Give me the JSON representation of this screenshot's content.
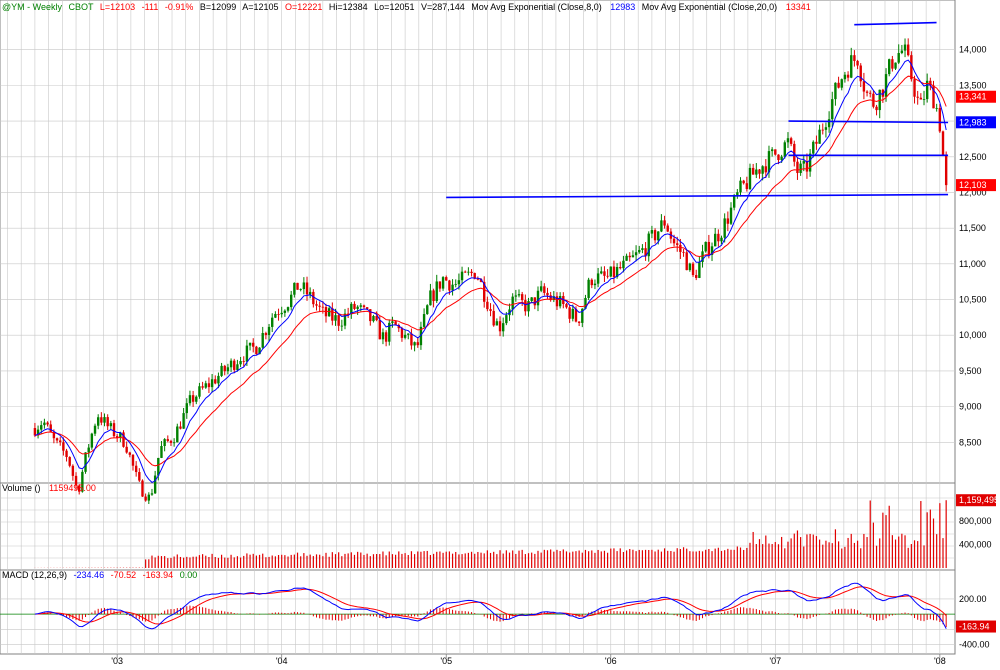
{
  "header": {
    "symbol": "@YM - Weekly",
    "exchange": "CBOT",
    "last": "L=12103",
    "change": "-111",
    "change_pct": "-0.91%",
    "bid": "B=12099",
    "ask": "A=12105",
    "open": "O=12221",
    "high": "Hi=12384",
    "low": "Lo=12051",
    "volume": "V=287,144",
    "ma8_label": "Mov Avg Exponential (Close,8,0)",
    "ma8_value": "12983",
    "ma20_label": "Mov Avg Exponential (Close,20,0)",
    "ma20_value": "13341"
  },
  "volume_header": {
    "label": "Volume ()",
    "value": "1159495.00"
  },
  "macd_header": {
    "label": "MACD (12,26,9)",
    "macd": "-234.46",
    "signal": "-70.52",
    "hist": "-163.94",
    "zero": "0.00"
  },
  "colors": {
    "up": "#008000",
    "down": "#e00000",
    "ma8": "#0000ff",
    "ma20": "#ff0000",
    "grid": "#c8c8c8",
    "trendline": "#0000ff",
    "volume": "#e00000",
    "macd": "#0000ff",
    "signal": "#ff0000"
  },
  "chart_data": [
    {
      "type": "candlestick",
      "title": "@YM - Weekly",
      "timeframe": "weekly",
      "ylim": [
        8000,
        14500
      ],
      "y_ticks": [
        8500,
        9000,
        9500,
        10000,
        10500,
        11000,
        11500,
        12000,
        12500,
        13000,
        13500,
        14000
      ],
      "y_tick_labels": [
        "8,500",
        "9,000",
        "9,500",
        "10,000",
        "10,500",
        "11,000",
        "11,500",
        "12,000",
        "12,500",
        "13,000",
        "13,500",
        "14,000"
      ],
      "x_tick_labels": [
        "'03",
        "'04",
        "'05",
        "'06",
        "'07",
        "'08"
      ],
      "close_anchors": [
        {
          "t": 2002.5,
          "v": 8700
        },
        {
          "t": 2002.55,
          "v": 8800
        },
        {
          "t": 2002.62,
          "v": 8500
        },
        {
          "t": 2002.7,
          "v": 8300
        },
        {
          "t": 2002.76,
          "v": 7800
        },
        {
          "t": 2002.82,
          "v": 8400
        },
        {
          "t": 2002.88,
          "v": 8900
        },
        {
          "t": 2002.95,
          "v": 8700
        },
        {
          "t": 2003.05,
          "v": 8500
        },
        {
          "t": 2003.13,
          "v": 7900
        },
        {
          "t": 2003.2,
          "v": 7700
        },
        {
          "t": 2003.26,
          "v": 8400
        },
        {
          "t": 2003.35,
          "v": 8600
        },
        {
          "t": 2003.45,
          "v": 9100
        },
        {
          "t": 2003.55,
          "v": 9300
        },
        {
          "t": 2003.65,
          "v": 9500
        },
        {
          "t": 2003.75,
          "v": 9700
        },
        {
          "t": 2003.85,
          "v": 9850
        },
        {
          "t": 2003.95,
          "v": 10300
        },
        {
          "t": 2004.05,
          "v": 10500
        },
        {
          "t": 2004.1,
          "v": 10700
        },
        {
          "t": 2004.15,
          "v": 10600
        },
        {
          "t": 2004.25,
          "v": 10300
        },
        {
          "t": 2004.35,
          "v": 10200
        },
        {
          "t": 2004.45,
          "v": 10400
        },
        {
          "t": 2004.55,
          "v": 10200
        },
        {
          "t": 2004.62,
          "v": 9950
        },
        {
          "t": 2004.68,
          "v": 10150
        },
        {
          "t": 2004.78,
          "v": 9900
        },
        {
          "t": 2004.82,
          "v": 9800
        },
        {
          "t": 2004.9,
          "v": 10500
        },
        {
          "t": 2004.98,
          "v": 10800
        },
        {
          "t": 2005.05,
          "v": 10700
        },
        {
          "t": 2005.18,
          "v": 10900
        },
        {
          "t": 2005.28,
          "v": 10300
        },
        {
          "t": 2005.32,
          "v": 10100
        },
        {
          "t": 2005.4,
          "v": 10500
        },
        {
          "t": 2005.5,
          "v": 10400
        },
        {
          "t": 2005.58,
          "v": 10600
        },
        {
          "t": 2005.65,
          "v": 10500
        },
        {
          "t": 2005.72,
          "v": 10400
        },
        {
          "t": 2005.8,
          "v": 10200
        },
        {
          "t": 2005.88,
          "v": 10800
        },
        {
          "t": 2005.98,
          "v": 10800
        },
        {
          "t": 2006.1,
          "v": 11000
        },
        {
          "t": 2006.2,
          "v": 11200
        },
        {
          "t": 2006.33,
          "v": 11600
        },
        {
          "t": 2006.38,
          "v": 11300
        },
        {
          "t": 2006.45,
          "v": 11100
        },
        {
          "t": 2006.5,
          "v": 10800
        },
        {
          "t": 2006.58,
          "v": 11200
        },
        {
          "t": 2006.68,
          "v": 11500
        },
        {
          "t": 2006.78,
          "v": 12000
        },
        {
          "t": 2006.88,
          "v": 12300
        },
        {
          "t": 2006.98,
          "v": 12500
        },
        {
          "t": 2007.08,
          "v": 12700
        },
        {
          "t": 2007.13,
          "v": 12300
        },
        {
          "t": 2007.18,
          "v": 12300
        },
        {
          "t": 2007.25,
          "v": 12700
        },
        {
          "t": 2007.33,
          "v": 13200
        },
        {
          "t": 2007.4,
          "v": 13600
        },
        {
          "t": 2007.45,
          "v": 13800
        },
        {
          "t": 2007.5,
          "v": 13900
        },
        {
          "t": 2007.55,
          "v": 13400
        },
        {
          "t": 2007.6,
          "v": 13250
        },
        {
          "t": 2007.65,
          "v": 13450
        },
        {
          "t": 2007.72,
          "v": 13900
        },
        {
          "t": 2007.78,
          "v": 14000
        },
        {
          "t": 2007.83,
          "v": 13600
        },
        {
          "t": 2007.88,
          "v": 13150
        },
        {
          "t": 2007.92,
          "v": 13500
        },
        {
          "t": 2007.97,
          "v": 13300
        },
        {
          "t": 2008.01,
          "v": 12850
        },
        {
          "t": 2008.03,
          "v": 12100
        }
      ],
      "ma8_last": 12983,
      "ma20_last": 13341,
      "last_price": 12103,
      "price_flags": [
        {
          "label": "13,341",
          "value": 13341,
          "color": "#ff0000"
        },
        {
          "label": "12,983",
          "value": 12983,
          "color": "#0000ff"
        },
        {
          "label": "12,103",
          "value": 12103,
          "color": "#ff0000"
        }
      ],
      "trendlines": [
        {
          "t1": 2005.0,
          "v1": 11930,
          "t2": 2008.05,
          "v2": 11970
        },
        {
          "t1": 2007.08,
          "v1": 12520,
          "t2": 2008.05,
          "v2": 12520
        },
        {
          "t1": 2007.08,
          "v1": 13000,
          "t2": 2008.05,
          "v2": 12980
        },
        {
          "t1": 2007.48,
          "v1": 14350,
          "t2": 2007.98,
          "v2": 14380
        }
      ]
    },
    {
      "type": "bar",
      "title": "Volume ()",
      "ylim": [
        0,
        1300000
      ],
      "y_ticks": [
        400000,
        800000
      ],
      "y_tick_labels": [
        "400,000",
        "800,000"
      ],
      "last_label": "1,159,495",
      "last_value": 1159495
    },
    {
      "type": "line",
      "title": "MACD (12,26,9)",
      "ylim": [
        -500,
        450
      ],
      "y_ticks": [
        200,
        -200,
        -400
      ],
      "y_tick_labels": [
        "200.00",
        "-200.00",
        "-400.00"
      ],
      "last_label": "-163.94",
      "last_value": -163.94
    }
  ]
}
